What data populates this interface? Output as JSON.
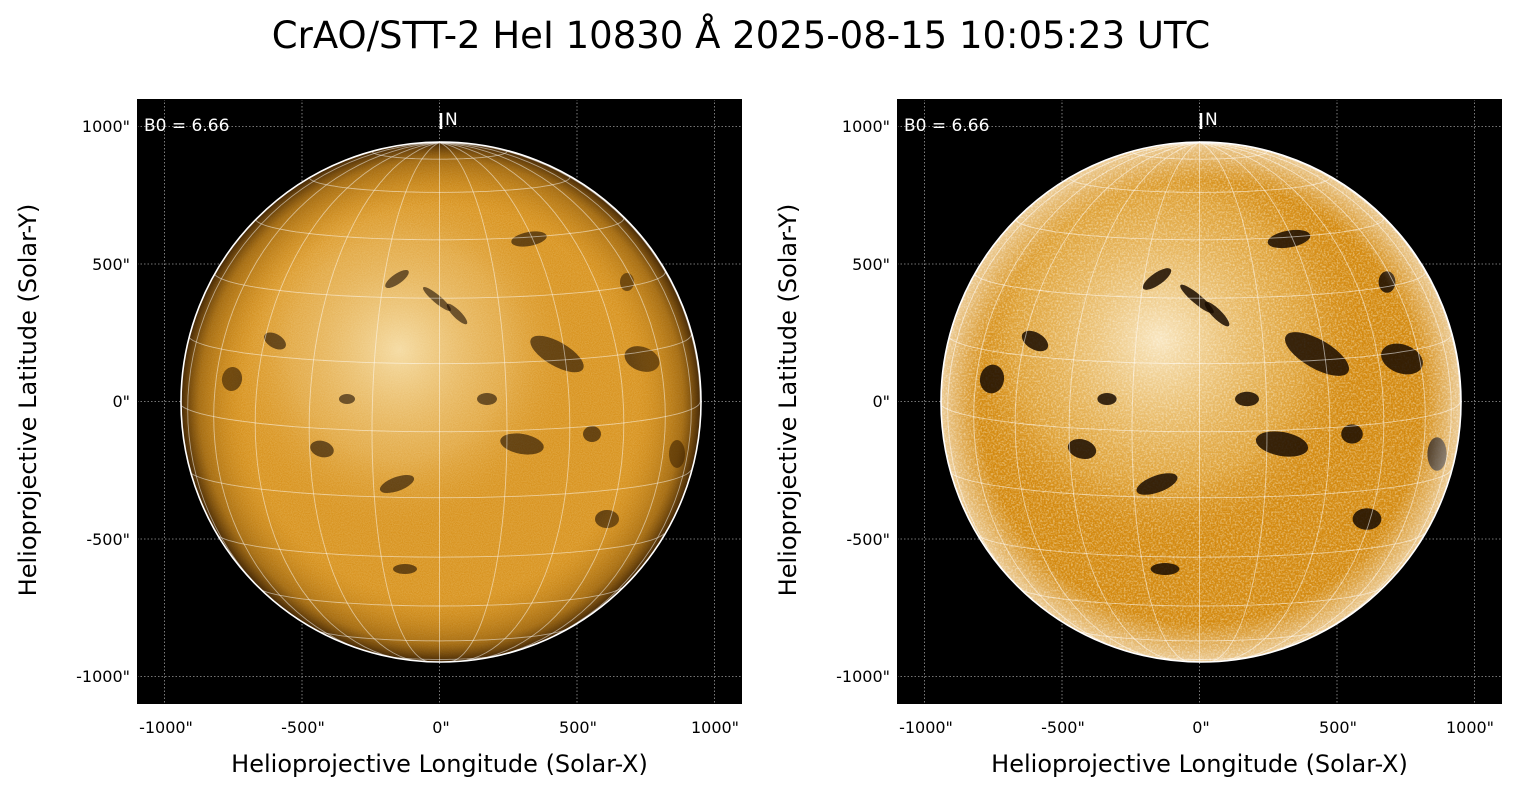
{
  "figure": {
    "title": "CrAO/STT-2 HeI 10830 Å 2025-08-15 10:05:23 UTC"
  },
  "panels": [
    {
      "id": "left",
      "b0_label": "B0 = 6.66",
      "north_label": "N",
      "xlabel": "Helioprojective Longitude (Solar-X)",
      "ylabel": "Helioprojective Latitude (Solar-Y)",
      "x_ticks": [
        "-1000\"",
        "-500\"",
        "0\"",
        "500\"",
        "1000\""
      ],
      "y_ticks": [
        "1000\"",
        "500\"",
        "0\"",
        "-500\"",
        "-1000\""
      ],
      "style": "normal"
    },
    {
      "id": "right",
      "b0_label": "B0 = 6.66",
      "north_label": "N",
      "xlabel": "Helioprojective Longitude (Solar-X)",
      "ylabel": "Helioprojective Latitude (Solar-Y)",
      "x_ticks": [
        "-1000\"",
        "-500\"",
        "0\"",
        "500\"",
        "1000\""
      ],
      "y_ticks": [
        "1000\"",
        "500\"",
        "0\"",
        "-500\"",
        "-1000\""
      ],
      "style": "enhanced"
    }
  ],
  "image_extent": {
    "x_range_arcsec": [
      -1100,
      1100
    ],
    "y_range_arcsec": [
      -1100,
      1100
    ],
    "solar_radius_arcsec": 948,
    "tick_values_arcsec": [
      -1000,
      -500,
      0,
      500,
      1000
    ]
  },
  "colors": {
    "background": "#000000",
    "disk_base": "#d48a10",
    "disk_light": "#f6d48c",
    "filament": "#1a0c00",
    "grid": "#ffffff"
  }
}
